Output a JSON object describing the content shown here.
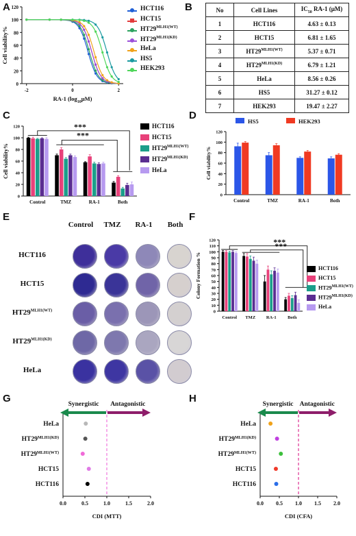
{
  "panels": {
    "A": {
      "label": "A"
    },
    "B": {
      "label": "B"
    },
    "C": {
      "label": "C"
    },
    "D": {
      "label": "D"
    },
    "E": {
      "label": "E"
    },
    "F": {
      "label": "F"
    },
    "G": {
      "label": "G"
    },
    "H": {
      "label": "H"
    }
  },
  "panelA": {
    "ylabel": "Cell viability%",
    "xlabel": "RA-1 (log10μM)",
    "xlabel_main": "RA-1 (log",
    "xlabel_sub": "10",
    "xlabel_unit": "μM)",
    "yticks": [
      "0",
      "20",
      "40",
      "60",
      "80",
      "100",
      "120"
    ],
    "xticks": [
      "-2",
      "0",
      "2"
    ],
    "legend": [
      {
        "name": "HCT116",
        "sup": "",
        "color": "#1f5fd6",
        "marker": "circle"
      },
      {
        "name": "HCT15",
        "sup": "",
        "color": "#e23b3b",
        "marker": "square"
      },
      {
        "name": "HT29",
        "sup": "MLH1(WT)",
        "color": "#2ca25f",
        "marker": "triangle"
      },
      {
        "name": "HT29",
        "sup": "MLH1(KD)",
        "color": "#9b4fd9",
        "marker": "triangle-down"
      },
      {
        "name": "HeLa",
        "sup": "",
        "color": "#f0a21a",
        "marker": "diamond"
      },
      {
        "name": "HS5",
        "sup": "",
        "color": "#1a9aa0",
        "marker": "circle"
      },
      {
        "name": "HEK293",
        "sup": "",
        "color": "#4fd65a",
        "marker": "circle"
      }
    ]
  },
  "panelB": {
    "headers": {
      "no": "No",
      "cell": "Cell Lines",
      "ic50": "IC50 RA-1 (μM)"
    },
    "ic_main": "IC",
    "ic_sub": "50",
    "ic_rest": " RA-1 (μM)",
    "rows": [
      {
        "no": "1",
        "cell": "HCT116",
        "sup": "",
        "value": "4.63 ± 0.13"
      },
      {
        "no": "2",
        "cell": "HCT15",
        "sup": "",
        "value": "6.81 ± 1.65"
      },
      {
        "no": "3",
        "cell": "HT29",
        "sup": "MLH1(WT)",
        "value": "5.37 ± 0.71"
      },
      {
        "no": "4",
        "cell": "HT29",
        "sup": "MLH1(KD)",
        "value": "6.79 ± 1.21"
      },
      {
        "no": "5",
        "cell": "HeLa",
        "sup": "",
        "value": "8.56 ± 0.26"
      },
      {
        "no": "6",
        "cell": "HS5",
        "sup": "",
        "value": "31.27 ± 0.12"
      },
      {
        "no": "7",
        "cell": "HEK293",
        "sup": "",
        "value": "19.47 ± 2.27"
      }
    ]
  },
  "chart_data": [
    {
      "panel": "A",
      "type": "line",
      "xlabel": "RA-1 (log10μM)",
      "ylabel": "Cell viability%",
      "xlim": [
        -2.2,
        2.2
      ],
      "ylim": [
        0,
        120
      ],
      "series": [
        {
          "name": "HCT116",
          "ic50_log": 0.67
        },
        {
          "name": "HCT15",
          "ic50_log": 0.83
        },
        {
          "name": "HT29MLH1(WT)",
          "ic50_log": 0.73
        },
        {
          "name": "HT29MLH1(KD)",
          "ic50_log": 0.83
        },
        {
          "name": "HeLa",
          "ic50_log": 0.93
        },
        {
          "name": "HS5",
          "ic50_log": 1.49
        },
        {
          "name": "HEK293",
          "ic50_log": 1.29
        }
      ]
    },
    {
      "panel": "C",
      "type": "bar",
      "ylabel": "Cell viability%",
      "ylim": [
        0,
        120
      ],
      "categories": [
        "Control",
        "TMZ",
        "RA-1",
        "Both"
      ],
      "series": [
        {
          "name": "HCT116",
          "color": "#000000",
          "values": [
            100,
            70,
            58,
            23
          ]
        },
        {
          "name": "HCT15",
          "color": "#e8417a",
          "values": [
            99,
            80,
            68,
            33
          ]
        },
        {
          "name": "HT29MLH1(WT)",
          "color": "#1b9e8a",
          "values": [
            98,
            64,
            56,
            13
          ]
        },
        {
          "name": "HT29MLH1(KD)",
          "color": "#5a2d91",
          "values": [
            99,
            70,
            55,
            19
          ]
        },
        {
          "name": "HeLa",
          "color": "#b79af0",
          "values": [
            98,
            67,
            56,
            20
          ]
        }
      ],
      "errors": [
        [
          1,
          2,
          1,
          2
        ],
        [
          2,
          3,
          3,
          2
        ],
        [
          1,
          2,
          2,
          2
        ],
        [
          1,
          2,
          2,
          3
        ],
        [
          2,
          2,
          2,
          4
        ]
      ],
      "significance": [
        "***",
        "***"
      ]
    },
    {
      "panel": "D",
      "type": "bar",
      "ylabel": "Cell viability%",
      "ylim": [
        0,
        120
      ],
      "categories": [
        "Control",
        "TMZ",
        "RA-1",
        "Both"
      ],
      "series": [
        {
          "name": "HS5",
          "color": "#2b56e8",
          "values": [
            92,
            75,
            70,
            69
          ]
        },
        {
          "name": "HEK293",
          "color": "#f03a22",
          "values": [
            99,
            94,
            82,
            76
          ]
        }
      ],
      "errors": [
        [
          6,
          5,
          2,
          3
        ],
        [
          2,
          3,
          2,
          2
        ]
      ]
    },
    {
      "panel": "F",
      "type": "bar",
      "ylabel": "Colony Formation %",
      "ylim": [
        0,
        120
      ],
      "categories": [
        "Control",
        "TMZ",
        "RA-1",
        "Both"
      ],
      "series": [
        {
          "name": "HCT116",
          "color": "#000000",
          "values": [
            100,
            93,
            50,
            20
          ]
        },
        {
          "name": "HCT15",
          "color": "#e8417a",
          "values": [
            100,
            92,
            70,
            26
          ]
        },
        {
          "name": "HT29MLH1(WT)",
          "color": "#1b9e8a",
          "values": [
            99,
            88,
            62,
            22
          ]
        },
        {
          "name": "HT29MLH1(KD)",
          "color": "#5a2d91",
          "values": [
            100,
            85,
            68,
            27
          ]
        },
        {
          "name": "HeLa",
          "color": "#b79af0",
          "values": [
            98,
            80,
            65,
            14
          ]
        }
      ],
      "errors": [
        [
          2,
          4,
          10,
          3
        ],
        [
          2,
          5,
          6,
          4
        ],
        [
          2,
          5,
          6,
          4
        ],
        [
          2,
          6,
          5,
          5
        ],
        [
          2,
          6,
          6,
          5
        ]
      ],
      "significance": [
        "***",
        "***"
      ]
    },
    {
      "panel": "G",
      "type": "scatter",
      "xlabel": "CDI (MTT)",
      "xlim": [
        0,
        2.0
      ],
      "categories": [
        "HeLa",
        "HT29MLH1(KD)",
        "HT29MLH1(WT)",
        "HCT15",
        "HCT116"
      ],
      "values": [
        0.52,
        0.51,
        0.45,
        0.59,
        0.56
      ],
      "colors": [
        "#b8b8b8",
        "#555555",
        "#f06ad8",
        "#e07be6",
        "#000000"
      ]
    },
    {
      "panel": "H",
      "type": "scatter",
      "xlabel": "CDI (CFA)",
      "xlim": [
        0,
        2.0
      ],
      "categories": [
        "HeLa",
        "HT29MLH1(KD)",
        "HT29MLH1(WT)",
        "HCT15",
        "HCT116"
      ],
      "values": [
        0.27,
        0.44,
        0.54,
        0.41,
        0.42
      ],
      "colors": [
        "#f0a21a",
        "#c040e0",
        "#3cc03c",
        "#f03a2a",
        "#2b6ee8"
      ]
    }
  ],
  "barLegends": {
    "C": [
      {
        "name": "HCT116",
        "sup": "",
        "color": "#000000"
      },
      {
        "name": "HCT15",
        "sup": "",
        "color": "#e8417a"
      },
      {
        "name": "HT29",
        "sup": "MLH1(WT)",
        "color": "#1b9e8a"
      },
      {
        "name": "HT29",
        "sup": "MLH1(KD)",
        "color": "#5a2d91"
      },
      {
        "name": "HeLa",
        "sup": "",
        "color": "#b79af0"
      }
    ],
    "D": [
      {
        "name": "HS5",
        "color": "#2b56e8"
      },
      {
        "name": "HEK293",
        "color": "#f03a22"
      }
    ]
  },
  "panelE": {
    "columns": [
      "Control",
      "TMZ",
      "RA-1",
      "Both"
    ],
    "rows": [
      {
        "name": "HCT116",
        "sup": ""
      },
      {
        "name": "HCT15",
        "sup": ""
      },
      {
        "name": "HT29",
        "sup": "MLH1(WT)"
      },
      {
        "name": "HT29",
        "sup": "MLH1(KD)"
      },
      {
        "name": "HeLa",
        "sup": ""
      }
    ]
  },
  "cdi": {
    "synergistic": "Synergistic",
    "antagonistic": "Antagonistic",
    "xticks": [
      "0.0",
      "0.5",
      "1.0",
      "1.5",
      "2.0"
    ],
    "labels": [
      {
        "name": "HeLa",
        "sup": ""
      },
      {
        "name": "HT29",
        "sup": "MLH1(KD)"
      },
      {
        "name": "HT29",
        "sup": "MLH1(WT)"
      },
      {
        "name": "HCT15",
        "sup": ""
      },
      {
        "name": "HCT116",
        "sup": ""
      }
    ]
  }
}
